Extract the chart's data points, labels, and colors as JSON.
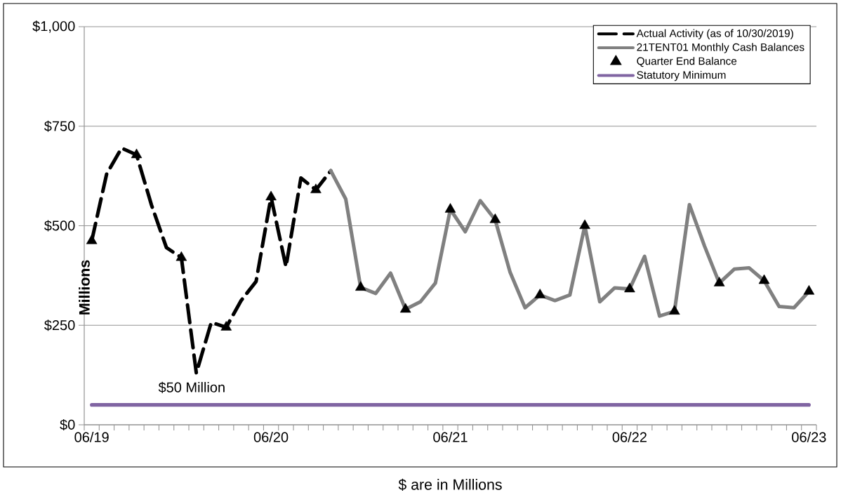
{
  "chart_data": {
    "type": "line",
    "xlabel": "$ are in Millions",
    "ylabel": "Millions",
    "categories": [
      "06/19",
      null,
      null,
      null,
      null,
      null,
      null,
      null,
      null,
      null,
      null,
      null,
      "06/20",
      null,
      null,
      null,
      null,
      null,
      null,
      null,
      null,
      null,
      null,
      null,
      "06/21",
      null,
      null,
      null,
      null,
      null,
      null,
      null,
      null,
      null,
      null,
      null,
      "06/22",
      null,
      null,
      null,
      null,
      null,
      null,
      null,
      null,
      null,
      null,
      null,
      "06/23"
    ],
    "ylim": [
      0,
      1000
    ],
    "yticks": [
      {
        "value": 0,
        "label": "$0"
      },
      {
        "value": 250,
        "label": "$250"
      },
      {
        "value": 500,
        "label": "$500"
      },
      {
        "value": 750,
        "label": "$750"
      },
      {
        "value": 1000,
        "label": "$1,000"
      }
    ],
    "grid": "y",
    "legend": "top right",
    "series": [
      {
        "name": "Actual Activity (as of 10/30/2019)",
        "line_style": "dashed",
        "color": "#000000",
        "values": [
          462,
          630,
          695,
          678,
          552,
          445,
          420,
          130,
          257,
          245,
          312,
          360,
          572,
          397,
          620,
          590,
          638,
          null,
          null,
          null,
          null,
          null,
          null,
          null,
          null,
          null,
          null,
          null,
          null,
          null,
          null,
          null,
          null,
          null,
          null,
          null,
          null,
          null,
          null,
          null,
          null,
          null,
          null,
          null,
          null,
          null,
          null,
          null,
          null
        ]
      },
      {
        "name": "21TENT01 Monthly Cash Balances",
        "color": "#808080",
        "values": [
          null,
          null,
          null,
          null,
          null,
          null,
          null,
          null,
          null,
          null,
          null,
          null,
          null,
          null,
          null,
          null,
          638,
          567,
          345,
          330,
          381,
          290,
          309,
          356,
          541,
          485,
          563,
          515,
          383,
          294,
          326,
          312,
          326,
          500,
          309,
          344,
          341,
          423,
          273,
          285,
          553,
          450,
          356,
          391,
          394,
          362,
          297,
          294,
          335
        ]
      },
      {
        "name": "Quarter End Balance",
        "type": "scatter",
        "marker": "triangle",
        "color": "#000000",
        "values": [
          462,
          null,
          null,
          678,
          null,
          null,
          420,
          null,
          null,
          245,
          null,
          null,
          572,
          null,
          null,
          590,
          null,
          null,
          345,
          null,
          null,
          290,
          null,
          null,
          541,
          null,
          null,
          515,
          null,
          null,
          326,
          null,
          null,
          500,
          null,
          null,
          341,
          null,
          null,
          285,
          null,
          null,
          356,
          null,
          null,
          362,
          null,
          null,
          335
        ]
      },
      {
        "name": "Statutory Minimum",
        "color": "#8064a2",
        "values": [
          50,
          50,
          50,
          50,
          50,
          50,
          50,
          50,
          50,
          50,
          50,
          50,
          50,
          50,
          50,
          50,
          50,
          50,
          50,
          50,
          50,
          50,
          50,
          50,
          50,
          50,
          50,
          50,
          50,
          50,
          50,
          50,
          50,
          50,
          50,
          50,
          50,
          50,
          50,
          50,
          50,
          50,
          50,
          50,
          50,
          50,
          50,
          50,
          50
        ]
      }
    ],
    "annotations": [
      {
        "text": "$50 Million",
        "y": 50
      }
    ]
  }
}
